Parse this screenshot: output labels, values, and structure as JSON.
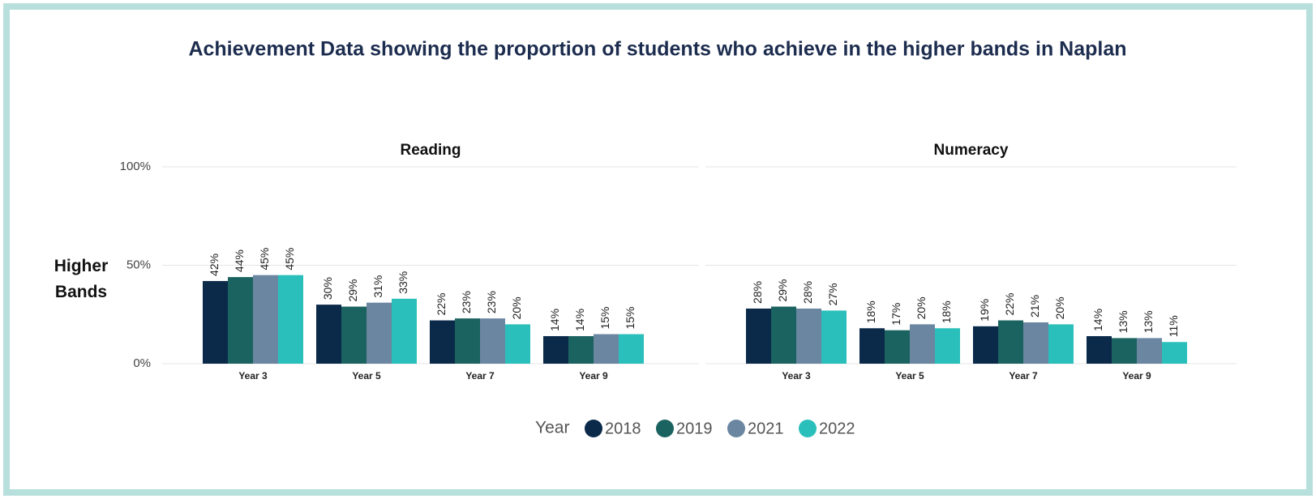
{
  "chart_data": {
    "type": "bar",
    "title": "Achievement Data showing the proportion of students who achieve in the higher bands in Naplan",
    "y_label": "Higher Bands",
    "legend_title": "Year",
    "panels": [
      "Reading",
      "Numeracy"
    ],
    "categories": [
      "Year 3",
      "Year 5",
      "Year 7",
      "Year 9"
    ],
    "ylim": [
      0,
      100
    ],
    "yticks": [
      {
        "value": 0,
        "label": "0%"
      },
      {
        "value": 50,
        "label": "50%"
      },
      {
        "value": 100,
        "label": "100%"
      }
    ],
    "grid": true,
    "series": [
      {
        "name": "2018",
        "color": "#0b2a4a",
        "values": [
          [
            42,
            30,
            22,
            14
          ],
          [
            28,
            18,
            19,
            14
          ]
        ],
        "value_labels": [
          [
            "42%",
            "30%",
            "22%",
            "14%"
          ],
          [
            "28%",
            "18%",
            "19%",
            "14%"
          ]
        ]
      },
      {
        "name": "2019",
        "color": "#1b6360",
        "values": [
          [
            44,
            29,
            23,
            14
          ],
          [
            29,
            17,
            22,
            13
          ]
        ],
        "value_labels": [
          [
            "44%",
            "29%",
            "23%",
            "14%"
          ],
          [
            "29%",
            "17%",
            "22%",
            "13%"
          ]
        ]
      },
      {
        "name": "2021",
        "color": "#6a86a0",
        "values": [
          [
            45,
            31,
            23,
            15
          ],
          [
            28,
            20,
            21,
            13
          ]
        ],
        "value_labels": [
          [
            "45%",
            "31%",
            "23%",
            "15%"
          ],
          [
            "28%",
            "20%",
            "21%",
            "13%"
          ]
        ]
      },
      {
        "name": "2022",
        "color": "#2bbfbb",
        "values": [
          [
            45,
            33,
            20,
            15
          ],
          [
            27,
            18,
            20,
            11
          ]
        ],
        "value_labels": [
          [
            "45%",
            "33%",
            "20%",
            "15%"
          ],
          [
            "27%",
            "18%",
            "20%",
            "11%"
          ]
        ]
      }
    ]
  }
}
